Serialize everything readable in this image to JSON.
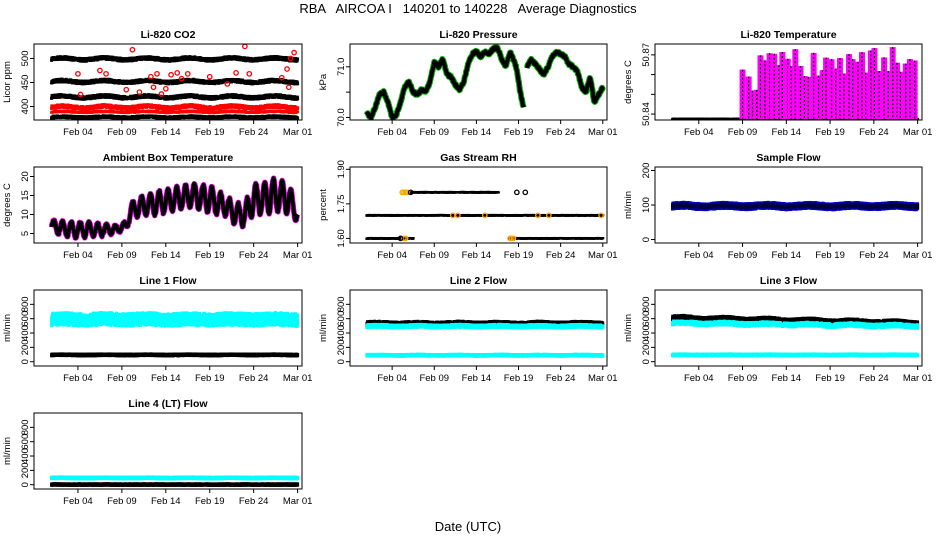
{
  "figure": {
    "title": "RBA   AIRCOA I   140201 to 140228   Average Diagnostics",
    "xlabel": "Date (UTC)"
  },
  "colors": {
    "black": "#000000",
    "red": "#ff0000",
    "green": "#00aa00",
    "magenta": "#ff00ff",
    "cyan": "#00ffff",
    "blue": "#0000cc",
    "orange": "#ffa500"
  },
  "x_ticks": [
    "Feb 04",
    "Feb 09",
    "Feb 14",
    "Feb 19",
    "Feb 24",
    "Mar 01"
  ],
  "chart_data": [
    {
      "type": "scatter",
      "title": "Li-820 CO2",
      "ylabel": "Licor ppm",
      "yticks": [
        400,
        450,
        500
      ],
      "ylim": [
        372,
        530
      ],
      "xlim": [
        -2,
        28.5
      ],
      "series": [
        {
          "name": "level-500",
          "color": "black",
          "style": "band",
          "start": 0,
          "end": 28,
          "center": 499,
          "amp": 2,
          "jitter": 3,
          "thick": 3
        },
        {
          "name": "level-452",
          "color": "black",
          "style": "band",
          "start": 0,
          "end": 28,
          "center": 452,
          "amp": 2,
          "jitter": 3,
          "thick": 3
        },
        {
          "name": "level-420",
          "color": "black",
          "style": "band",
          "start": 0,
          "end": 28,
          "center": 420,
          "amp": 2,
          "jitter": 3,
          "thick": 3
        },
        {
          "name": "level-400",
          "color": "red",
          "style": "band",
          "start": 0,
          "end": 28,
          "center": 399,
          "amp": 2,
          "jitter": 3,
          "thick": 3
        },
        {
          "name": "level-388",
          "color": "red",
          "style": "band",
          "start": 0,
          "end": 28,
          "center": 389,
          "amp": 1,
          "jitter": 2,
          "thick": 2
        },
        {
          "name": "level-378",
          "color": "black",
          "style": "band",
          "start": 0,
          "end": 28,
          "center": 378,
          "amp": 1,
          "jitter": 2,
          "thick": 3
        },
        {
          "name": "co2-outliers",
          "color": "red",
          "style": "points",
          "x": [
            3.0,
            3.3,
            5.5,
            6.2,
            8.5,
            9.2,
            10.0,
            11.3,
            11.6,
            12.0,
            12.5,
            13.0,
            13.6,
            14.3,
            14.8,
            15.5,
            18.0,
            20.0,
            21.0,
            22.0,
            26.2,
            26.8,
            27.2,
            27.6,
            27.0,
            22.5
          ],
          "y": [
            468,
            425,
            475,
            468,
            435,
            518,
            430,
            462,
            440,
            468,
            426,
            437,
            466,
            470,
            458,
            468,
            462,
            447,
            470,
            525,
            460,
            478,
            500,
            512,
            440,
            468
          ]
        }
      ]
    },
    {
      "type": "scatter",
      "title": "Li-820 Pressure",
      "ylabel": "kPa",
      "yticks": [
        70.0,
        70.5,
        71.0
      ],
      "ytick_labels": [
        "70.0",
        "",
        "71.0"
      ],
      "ylim": [
        69.95,
        71.45
      ],
      "xlim": [
        -2,
        28.5
      ],
      "series": [
        {
          "name": "pressure",
          "color": "black",
          "style": "trace",
          "edge": "green",
          "thick": 4,
          "x": [
            0,
            0.5,
            1,
            1.5,
            2,
            2.5,
            3,
            3.5,
            4,
            4.5,
            5,
            5.5,
            6,
            6.5,
            7,
            7.5,
            8,
            8.5,
            9,
            9.5,
            10,
            10.5,
            11,
            11.5,
            12,
            12.5,
            13,
            13.5,
            14,
            14.5,
            15,
            15.5,
            16,
            16.5,
            17,
            17.5,
            17.8,
            18.2,
            18.6,
            null,
            19.0,
            19.5,
            20,
            20.5,
            21,
            21.5,
            22,
            22.5,
            23,
            23.5,
            24,
            24.5,
            25,
            25.5,
            26,
            26.5,
            27,
            27.5,
            28
          ],
          "y": [
            70.08,
            70.0,
            70.2,
            70.45,
            70.5,
            70.3,
            70.0,
            70.05,
            70.3,
            70.6,
            70.7,
            70.5,
            70.45,
            70.55,
            70.5,
            70.7,
            71.1,
            71.0,
            71.15,
            70.85,
            70.8,
            70.65,
            70.55,
            70.7,
            71.05,
            71.25,
            71.3,
            71.2,
            71.3,
            71.25,
            71.35,
            71.38,
            71.15,
            71.0,
            71.3,
            71.1,
            70.95,
            70.5,
            70.2,
            null,
            71.0,
            71.15,
            71.05,
            70.95,
            70.85,
            71.0,
            71.2,
            71.3,
            71.25,
            71.2,
            71.05,
            71.0,
            70.9,
            70.6,
            70.5,
            70.8,
            70.3,
            70.45,
            70.6
          ]
        }
      ]
    },
    {
      "type": "scatter",
      "title": "Li-820 Temperature",
      "ylabel": "degrees C",
      "yticks": [
        50.84,
        50.85,
        50.86,
        50.87
      ],
      "ytick_labels": [
        "50.84",
        "",
        "",
        "50.87"
      ],
      "ylim": [
        50.837,
        50.8755
      ],
      "xlim": [
        -2,
        28.5
      ],
      "series": [
        {
          "name": "temp-base",
          "color": "black",
          "style": "band",
          "start": 0,
          "end": 28,
          "center": 50.8375,
          "amp": 0,
          "jitter": 0.0002,
          "thick": 2
        },
        {
          "name": "temp-spikes",
          "color": "magenta",
          "style": "spikes",
          "edge": "black",
          "start": 8,
          "end": 28,
          "base": 50.8375,
          "top": 50.875,
          "period": 0.5,
          "seed": 7
        }
      ]
    },
    {
      "type": "scatter",
      "title": "Ambient Box Temperature",
      "ylabel": "degrees C",
      "yticks": [
        5,
        10,
        15,
        20
      ],
      "ylim": [
        2.5,
        22.5
      ],
      "xlim": [
        -2,
        28.5
      ],
      "series": [
        {
          "name": "ambient",
          "color": "black",
          "style": "oscillation",
          "edge": "magenta",
          "start": 0,
          "end": 28,
          "period": 1,
          "seed": 3,
          "knots_x": [
            0,
            2,
            4,
            6,
            7,
            8.5,
            9,
            10,
            12,
            14,
            16,
            18,
            19,
            20,
            21,
            22,
            23,
            24,
            25,
            26,
            27,
            28
          ],
          "knots_c": [
            7,
            6,
            6,
            6,
            6,
            7,
            11,
            12,
            13,
            14,
            15,
            14,
            13,
            12,
            10,
            10,
            14,
            14,
            15,
            15,
            14,
            10
          ],
          "knots_a": [
            1.5,
            2,
            2,
            1.5,
            1,
            1,
            2,
            2.5,
            3,
            3,
            3,
            3.5,
            3,
            2.5,
            3,
            3,
            4,
            4,
            4.5,
            4,
            4,
            2
          ]
        }
      ]
    },
    {
      "type": "scatter",
      "title": "Gas Stream RH",
      "ylabel": "percent",
      "yticks": [
        1.6,
        1.75,
        1.9
      ],
      "ytick_labels": [
        "1.60",
        "1.75",
        "1.90"
      ],
      "ylim": [
        1.58,
        1.91
      ],
      "xlim": [
        -2,
        28.5
      ],
      "series": [
        {
          "name": "rh-175",
          "color": "black",
          "style": "band",
          "start": 0,
          "end": 28,
          "center": 1.7,
          "amp": 0,
          "jitter": 0.002,
          "thick": 2
        },
        {
          "name": "rh-180",
          "color": "black",
          "style": "band",
          "start": 5.2,
          "end": 15.6,
          "center": 1.8,
          "amp": 0,
          "jitter": 0.002,
          "thick": 2
        },
        {
          "name": "rh-160a",
          "color": "black",
          "style": "band",
          "start": 0,
          "end": 5.5,
          "center": 1.6,
          "amp": 0,
          "jitter": 0.002,
          "thick": 2
        },
        {
          "name": "rh-160b",
          "color": "black",
          "style": "band",
          "start": 17,
          "end": 28,
          "center": 1.6,
          "amp": 0,
          "jitter": 0.002,
          "thick": 2
        },
        {
          "name": "rh-orange",
          "color": "orange",
          "style": "points",
          "x": [
            4.2,
            4.4,
            4.6,
            4.8,
            4.4,
            4.6,
            10.2,
            10.8,
            14.0,
            17.0,
            17.2,
            17.4,
            20.3,
            21.6,
            27.8
          ],
          "y": [
            1.8,
            1.8,
            1.8,
            1.8,
            1.6,
            1.6,
            1.7,
            1.7,
            1.7,
            1.6,
            1.6,
            1.6,
            1.7,
            1.7,
            1.7
          ]
        },
        {
          "name": "rh-outliers",
          "color": "black",
          "style": "points",
          "x": [
            5.2,
            17.8,
            18.8,
            4.0
          ],
          "y": [
            1.8,
            1.8,
            1.8,
            1.6
          ]
        }
      ]
    },
    {
      "type": "scatter",
      "title": "Sample Flow",
      "ylabel": "ml/min",
      "yticks": [
        0,
        100,
        200
      ],
      "ylim": [
        -10,
        210
      ],
      "xlim": [
        -2,
        28.5
      ],
      "series": [
        {
          "name": "sample-flow",
          "color": "black",
          "style": "band",
          "edge": "blue",
          "start": 0,
          "end": 28,
          "center": 97,
          "amp": 2,
          "jitter": 3,
          "thick": 5
        }
      ]
    },
    {
      "type": "scatter",
      "title": "Line 1 Flow",
      "ylabel": "ml/min",
      "yticks": [
        0,
        200,
        400,
        600,
        800
      ],
      "ylim": [
        -60,
        1000
      ],
      "xlim": [
        -2,
        28.5
      ],
      "series": [
        {
          "name": "line1-cyan",
          "color": "cyan",
          "style": "band",
          "start": 0,
          "end": 28,
          "center": 590,
          "amp": 8,
          "jitter": 40,
          "thick": 10
        },
        {
          "name": "line1-black",
          "color": "black",
          "style": "band",
          "start": 0,
          "end": 28,
          "center": 95,
          "amp": 2,
          "jitter": 5,
          "thick": 4
        }
      ]
    },
    {
      "type": "scatter",
      "title": "Line 2 Flow",
      "ylabel": "ml/min",
      "yticks": [
        0,
        200,
        400,
        600,
        800
      ],
      "ylim": [
        -60,
        1000
      ],
      "xlim": [
        -2,
        28.5
      ],
      "series": [
        {
          "name": "line2-black",
          "color": "black",
          "style": "band",
          "start": 0,
          "end": 28,
          "center": 530,
          "amp": 6,
          "jitter": 15,
          "thick": 5
        },
        {
          "name": "line2-cyan-upper",
          "color": "cyan",
          "style": "band",
          "start": 0,
          "end": 28,
          "center": 495,
          "amp": 5,
          "jitter": 15,
          "thick": 4
        },
        {
          "name": "line2-cyan-lower",
          "color": "cyan",
          "style": "band",
          "start": 0,
          "end": 28,
          "center": 90,
          "amp": 2,
          "jitter": 5,
          "thick": 4
        }
      ]
    },
    {
      "type": "scatter",
      "title": "Line 3 Flow",
      "ylabel": "ml/min",
      "yticks": [
        0,
        200,
        400,
        600,
        800
      ],
      "ylim": [
        -60,
        1000
      ],
      "xlim": [
        -2,
        28.5
      ],
      "series": [
        {
          "name": "line3-black",
          "color": "black",
          "style": "band",
          "start": 0,
          "end": 28,
          "center": 610,
          "amp": 10,
          "jitter": 15,
          "thick": 5,
          "slope": -2.5
        },
        {
          "name": "line3-cyan-upper",
          "color": "cyan",
          "style": "band",
          "start": 0,
          "end": 28,
          "center": 540,
          "amp": 8,
          "jitter": 20,
          "thick": 4,
          "slope": -1.5
        },
        {
          "name": "line3-cyan-lower",
          "color": "cyan",
          "style": "band",
          "start": 0,
          "end": 28,
          "center": 95,
          "amp": 2,
          "jitter": 5,
          "thick": 4
        }
      ]
    },
    {
      "type": "scatter",
      "title": "Line 4 (LT) Flow",
      "ylabel": "ml/min",
      "yticks": [
        0,
        200,
        400,
        600,
        800
      ],
      "ylim": [
        -60,
        1000
      ],
      "xlim": [
        -2,
        28.5
      ],
      "series": [
        {
          "name": "line4-cyan",
          "color": "cyan",
          "style": "band",
          "start": 0,
          "end": 28,
          "center": 95,
          "amp": 2,
          "jitter": 5,
          "thick": 4
        },
        {
          "name": "line4-black",
          "color": "black",
          "style": "band",
          "start": 0,
          "end": 28,
          "center": 2,
          "amp": 0,
          "jitter": 3,
          "thick": 4
        }
      ]
    }
  ]
}
